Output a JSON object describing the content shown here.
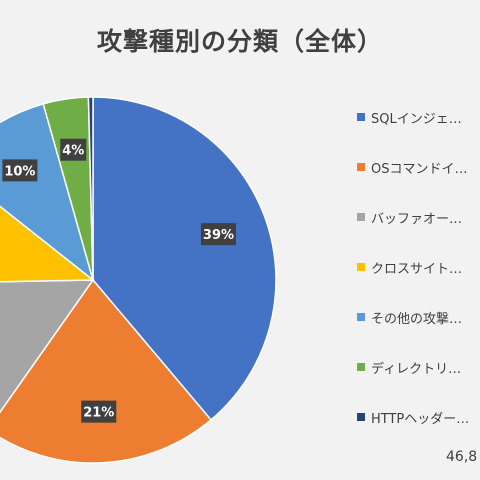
{
  "title": "攻撃種別の分類（全体）",
  "footer_total": "46,8",
  "colors": {
    "background": "#f2f2f2",
    "label_bg": "#404040",
    "label_text": "#ffffff"
  },
  "chart_data": {
    "type": "pie",
    "title": "攻撃種別の分類（全体）",
    "legend_position": "right",
    "slices": [
      {
        "name": "SQLインジェ…",
        "value": 39,
        "label": "39%",
        "color": "#4472c4"
      },
      {
        "name": "OSコマンドイ…",
        "value": 21,
        "label": "21%",
        "color": "#ed7d31"
      },
      {
        "name": "バッファオー…",
        "value": 15,
        "label": "%",
        "color": "#a5a5a5"
      },
      {
        "name": "クロスサイト…",
        "value": 11,
        "label": "",
        "color": "#ffc000"
      },
      {
        "name": "その他の攻撃…",
        "value": 10,
        "label": "10%",
        "color": "#5b9bd5"
      },
      {
        "name": "ディレクトリ…",
        "value": 4,
        "label": "4%",
        "color": "#70ad47"
      },
      {
        "name": "HTTPヘッダー…",
        "value": 0.4,
        "label": "",
        "color": "#264478"
      }
    ]
  }
}
